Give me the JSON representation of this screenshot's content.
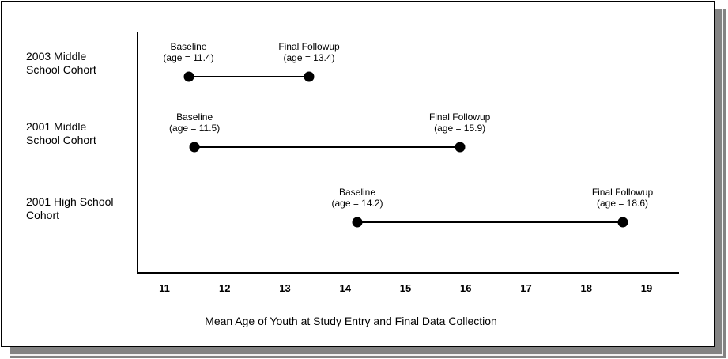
{
  "colors": {
    "background": "#ffffff",
    "frame_border": "#000000",
    "shadow": "#838383",
    "marker": "#000000",
    "axis": "#000000",
    "text": "#000000"
  },
  "chart_data": {
    "type": "line",
    "subtype": "dumbbell-range",
    "title": "",
    "xlabel": "Mean Age of Youth at Study Entry and Final Data Collection",
    "ylabel": "",
    "x_ticks": [
      11,
      12,
      13,
      14,
      15,
      16,
      17,
      18,
      19
    ],
    "xlim": [
      10.55,
      19.5
    ],
    "grid": false,
    "legend": "none",
    "marker_shape": "filled-circle",
    "series": [
      {
        "name": "2003 Middle School Cohort",
        "name_lines": [
          "2003 Middle",
          "School Cohort"
        ],
        "points": [
          {
            "label": "Baseline",
            "sublabel": "(age = 11.4)",
            "x": 11.4
          },
          {
            "label": "Final Followup",
            "sublabel": "(age = 13.4)",
            "x": 13.4
          }
        ]
      },
      {
        "name": "2001 Middle School Cohort",
        "name_lines": [
          "2001 Middle",
          "School Cohort"
        ],
        "points": [
          {
            "label": "Baseline",
            "sublabel": "(age = 11.5)",
            "x": 11.5
          },
          {
            "label": "Final Followup",
            "sublabel": "(age = 15.9)",
            "x": 15.9
          }
        ]
      },
      {
        "name": "2001 High School Cohort",
        "name_lines": [
          "2001 High School",
          "Cohort"
        ],
        "points": [
          {
            "label": "Baseline",
            "sublabel": "(age = 14.2)",
            "x": 14.2
          },
          {
            "label": "Final Followup",
            "sublabel": "(age = 18.6)",
            "x": 18.6
          }
        ]
      }
    ]
  }
}
